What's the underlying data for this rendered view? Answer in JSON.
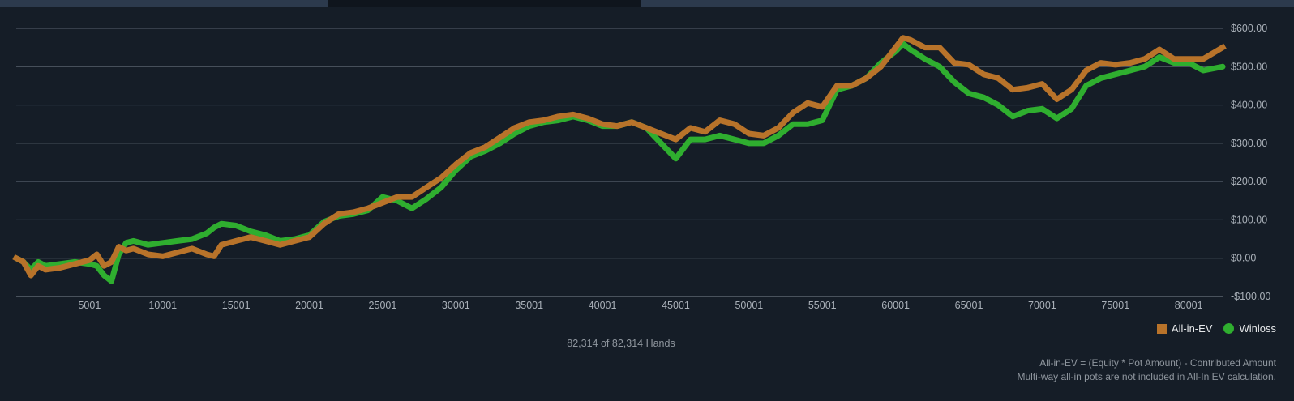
{
  "tabs": [
    {
      "label": "",
      "state": "inactive"
    },
    {
      "label": "",
      "state": "active"
    },
    {
      "label": "",
      "state": "inactive"
    }
  ],
  "chart_data": {
    "type": "line",
    "title": "",
    "xlabel": "",
    "ylabel": "",
    "xlim": [
      1,
      82314
    ],
    "ylim": [
      -100,
      600
    ],
    "grid": true,
    "y_ticks": [
      -100,
      0,
      100,
      200,
      300,
      400,
      500,
      600
    ],
    "y_tick_labels": [
      "-$100.00",
      "$0.00",
      "$100.00",
      "$200.00",
      "$300.00",
      "$400.00",
      "$500.00",
      "$600.00"
    ],
    "x_ticks": [
      5001,
      10001,
      15001,
      20001,
      25001,
      30001,
      35001,
      40001,
      45001,
      50001,
      55001,
      60001,
      65001,
      70001,
      75001,
      80001
    ],
    "x_tick_labels": [
      "5001",
      "10001",
      "15001",
      "20001",
      "25001",
      "30001",
      "35001",
      "40001",
      "45001",
      "50001",
      "55001",
      "60001",
      "65001",
      "70001",
      "75001",
      "80001"
    ],
    "legend_position": "bottom-right",
    "series": [
      {
        "name": "All-in-EV",
        "color": "#b8732a",
        "marker": "square",
        "x": [
          1,
          500,
          1000,
          1500,
          2000,
          3000,
          4000,
          5000,
          5500,
          6000,
          6500,
          7000,
          7500,
          8000,
          9000,
          10000,
          11000,
          12000,
          13000,
          13500,
          14000,
          15000,
          16000,
          17000,
          18000,
          19000,
          20000,
          21000,
          22000,
          23000,
          24000,
          25000,
          26000,
          27000,
          28000,
          29000,
          30000,
          31000,
          32000,
          33000,
          34000,
          35000,
          36000,
          37000,
          38000,
          39000,
          40000,
          41000,
          42000,
          43000,
          44000,
          45000,
          46000,
          47000,
          48000,
          49000,
          50000,
          51000,
          52000,
          53000,
          54000,
          55000,
          56000,
          57000,
          58000,
          59000,
          60000,
          60500,
          61000,
          62000,
          63000,
          64000,
          65000,
          66000,
          67000,
          68000,
          69000,
          70000,
          71000,
          72000,
          73000,
          74000,
          75000,
          76000,
          77000,
          78000,
          79000,
          80000,
          81000,
          82314
        ],
        "y": [
          0,
          -10,
          -45,
          -20,
          -30,
          -25,
          -15,
          -5,
          10,
          -20,
          -10,
          30,
          20,
          25,
          10,
          5,
          15,
          25,
          10,
          5,
          35,
          45,
          55,
          45,
          35,
          45,
          55,
          90,
          115,
          120,
          130,
          145,
          160,
          160,
          185,
          210,
          245,
          275,
          290,
          315,
          340,
          355,
          360,
          370,
          375,
          365,
          350,
          345,
          355,
          340,
          325,
          310,
          340,
          330,
          360,
          350,
          325,
          320,
          340,
          380,
          405,
          395,
          450,
          450,
          470,
          500,
          550,
          575,
          570,
          550,
          550,
          510,
          505,
          480,
          470,
          440,
          445,
          455,
          415,
          440,
          490,
          510,
          505,
          510,
          520,
          545,
          520,
          520,
          520,
          550
        ]
      },
      {
        "name": "Winloss",
        "color": "#2fae2f",
        "marker": "circle",
        "x": [
          1,
          500,
          1000,
          1500,
          2000,
          3000,
          4000,
          5000,
          5500,
          6000,
          6500,
          7000,
          7500,
          8000,
          9000,
          10000,
          11000,
          12000,
          13000,
          13500,
          14000,
          15000,
          16000,
          17000,
          18000,
          19000,
          20000,
          21000,
          22000,
          23000,
          24000,
          25000,
          26000,
          27000,
          28000,
          29000,
          30000,
          31000,
          32000,
          33000,
          34000,
          35000,
          36000,
          37000,
          38000,
          39000,
          40000,
          41000,
          42000,
          43000,
          44000,
          45000,
          46000,
          47000,
          48000,
          49000,
          50000,
          51000,
          52000,
          53000,
          54000,
          55000,
          56000,
          57000,
          58000,
          59000,
          60000,
          60500,
          61000,
          62000,
          63000,
          64000,
          65000,
          66000,
          67000,
          68000,
          69000,
          70000,
          71000,
          72000,
          73000,
          74000,
          75000,
          76000,
          77000,
          78000,
          79000,
          80000,
          81000,
          82314
        ],
        "y": [
          0,
          -10,
          -30,
          -10,
          -20,
          -15,
          -10,
          -15,
          -20,
          -45,
          -60,
          10,
          40,
          45,
          35,
          40,
          45,
          50,
          65,
          80,
          90,
          85,
          70,
          60,
          45,
          50,
          60,
          95,
          110,
          115,
          125,
          160,
          150,
          130,
          155,
          185,
          230,
          265,
          280,
          300,
          325,
          345,
          355,
          360,
          370,
          360,
          345,
          345,
          355,
          340,
          300,
          260,
          310,
          310,
          320,
          310,
          300,
          300,
          320,
          350,
          350,
          360,
          440,
          450,
          470,
          510,
          540,
          560,
          545,
          520,
          500,
          460,
          430,
          420,
          400,
          370,
          385,
          390,
          365,
          390,
          450,
          470,
          480,
          490,
          500,
          525,
          510,
          510,
          490,
          500
        ]
      }
    ]
  },
  "footer": {
    "hands_count": "82,314 of 82,314 Hands",
    "note_line1": "All-in-EV = (Equity * Pot Amount) - Contributed Amount",
    "note_line2": "Multi-way all-in pots are not included in All-In EV calculation."
  }
}
